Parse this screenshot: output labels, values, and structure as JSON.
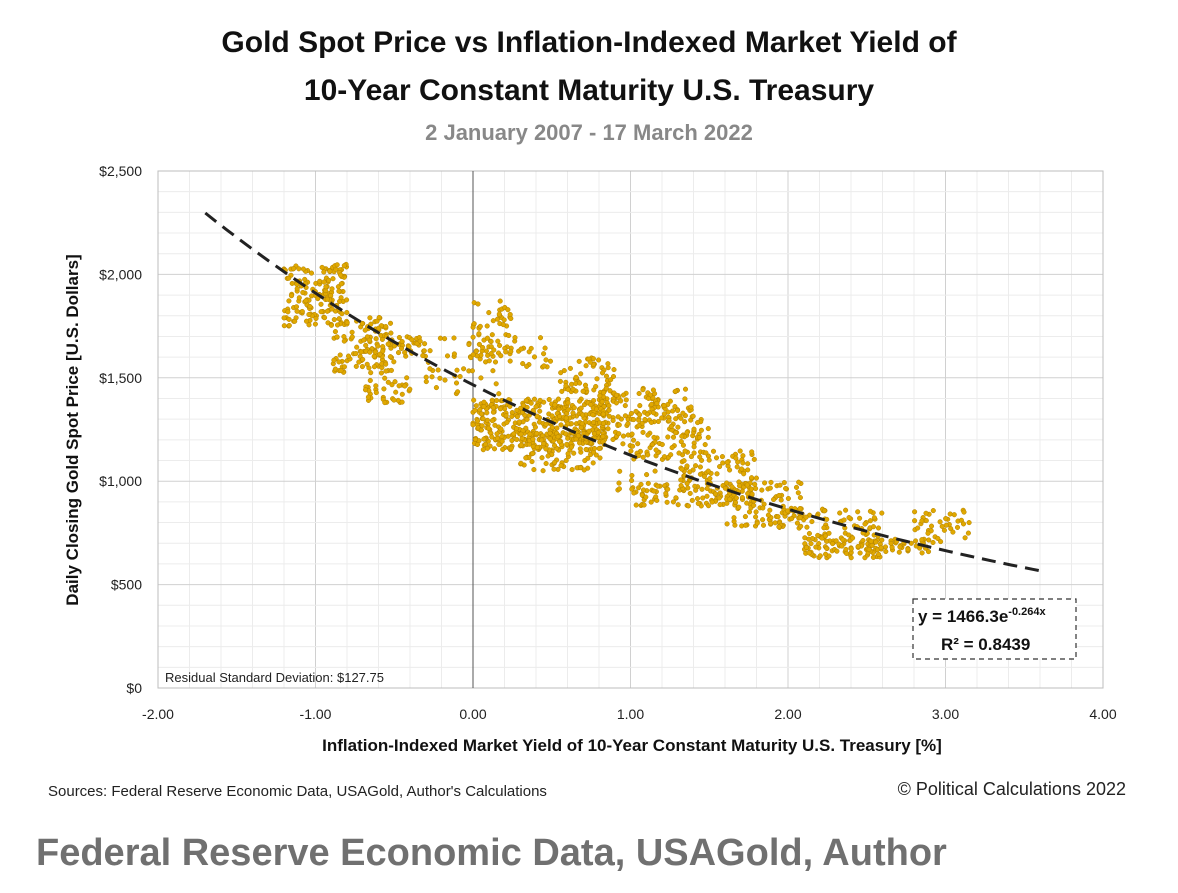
{
  "chart_data": {
    "type": "scatter",
    "title": "Gold Spot Price vs Inflation-Indexed Market Yield of",
    "title_line2": "10-Year Constant Maturity U.S. Treasury",
    "subtitle": "2 January 2007 - 17 March 2022",
    "xlabel": "Inflation-Indexed Market Yield of 10-Year Constant Maturity U.S. Treasury [%]",
    "ylabel": "Daily Closing Gold Spot Price [U.S. Dollars]",
    "xlim": [
      -2.0,
      4.0
    ],
    "ylim": [
      0,
      2500
    ],
    "x_ticks": [
      -2.0,
      -1.0,
      0.0,
      1.0,
      2.0,
      3.0,
      4.0
    ],
    "x_tick_labels": [
      "-2.00",
      "-1.00",
      "0.00",
      "1.00",
      "2.00",
      "3.00",
      "4.00"
    ],
    "y_ticks": [
      0,
      500,
      1000,
      1500,
      2000,
      2500
    ],
    "y_tick_labels": [
      "$0",
      "$500",
      "$1,000",
      "$1,500",
      "$2,000",
      "$2,500"
    ],
    "grid": true,
    "point_color": "#e0a800",
    "point_edge_color": "#b08000",
    "trendline": {
      "type": "exponential",
      "a": 1466.3,
      "b": -0.264,
      "x_range": [
        -1.7,
        3.62
      ],
      "style": "dashed",
      "color": "#222222"
    },
    "equation_main": "y = 1466.3e",
    "equation_exp": "-0.264x",
    "r_squared_label": "R² = 0.8439",
    "residual_note": "Residual Standard Deviation: $127.75",
    "clusters": [
      {
        "x": [
          -1.2,
          -0.8
        ],
        "y": [
          1750,
          2050
        ],
        "n": 160
      },
      {
        "x": [
          -0.9,
          -0.5
        ],
        "y": [
          1520,
          1800
        ],
        "n": 110
      },
      {
        "x": [
          -0.7,
          -0.3
        ],
        "y": [
          1600,
          1700
        ],
        "n": 50
      },
      {
        "x": [
          -0.7,
          -0.4
        ],
        "y": [
          1380,
          1500
        ],
        "n": 35
      },
      {
        "x": [
          -0.3,
          0.2
        ],
        "y": [
          1420,
          1700
        ],
        "n": 45
      },
      {
        "x": [
          0.0,
          0.25
        ],
        "y": [
          1600,
          1880
        ],
        "n": 45
      },
      {
        "x": [
          0.1,
          0.5
        ],
        "y": [
          1550,
          1700
        ],
        "n": 30
      },
      {
        "x": [
          0.0,
          0.85
        ],
        "y": [
          1150,
          1400
        ],
        "n": 380
      },
      {
        "x": [
          0.3,
          0.8
        ],
        "y": [
          1050,
          1250
        ],
        "n": 110
      },
      {
        "x": [
          0.55,
          0.9
        ],
        "y": [
          1420,
          1600
        ],
        "n": 60
      },
      {
        "x": [
          0.8,
          1.4
        ],
        "y": [
          1280,
          1450
        ],
        "n": 110
      },
      {
        "x": [
          0.8,
          1.5
        ],
        "y": [
          1100,
          1300
        ],
        "n": 120
      },
      {
        "x": [
          1.3,
          1.8
        ],
        "y": [
          950,
          1150
        ],
        "n": 80
      },
      {
        "x": [
          1.0,
          1.8
        ],
        "y": [
          880,
          990
        ],
        "n": 90
      },
      {
        "x": [
          1.6,
          2.1
        ],
        "y": [
          780,
          1000
        ],
        "n": 90
      },
      {
        "x": [
          1.9,
          2.6
        ],
        "y": [
          770,
          870
        ],
        "n": 60
      },
      {
        "x": [
          2.1,
          2.6
        ],
        "y": [
          630,
          750
        ],
        "n": 100
      },
      {
        "x": [
          2.5,
          2.9
        ],
        "y": [
          650,
          720
        ],
        "n": 45
      },
      {
        "x": [
          2.8,
          3.15
        ],
        "y": [
          700,
          860
        ],
        "n": 40
      },
      {
        "x": [
          0.9,
          1.2
        ],
        "y": [
          950,
          1050
        ],
        "n": 15
      }
    ]
  },
  "footer": {
    "sources": "Sources: Federal Reserve Economic Data, USAGold, Author's Calculations",
    "copyright": "© Political Calculations 2022",
    "caption": "Federal Reserve Economic Data, USAGold, Author"
  }
}
